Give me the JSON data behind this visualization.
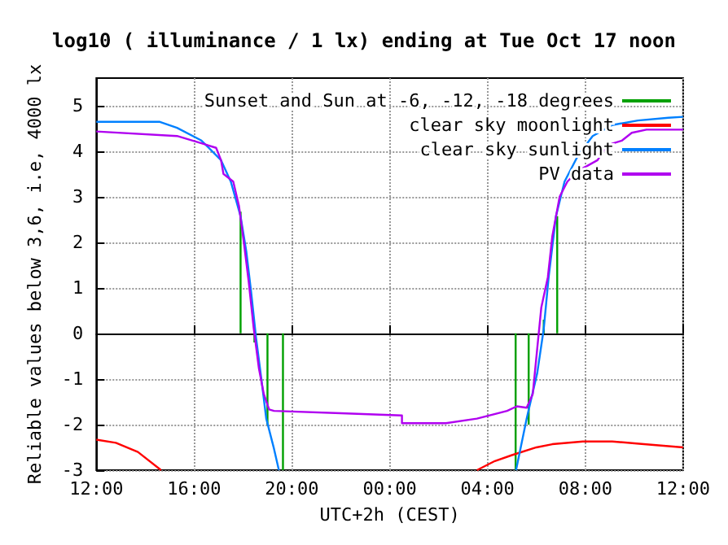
{
  "chart_data": {
    "type": "line",
    "title": "log10 ( illuminance / 1 lx) ending at Tue Oct 17 noon",
    "xlabel": "UTC+2h (CEST)",
    "ylabel": "Reliable values below 3,6, i.e, 4000 lx",
    "xlim": [
      "--10-16T12:00",
      "--10-17T12:00"
    ],
    "ylim": [
      -3,
      5.6
    ],
    "xticks": [
      {
        "value": "--10-16T12:00",
        "label": "12:00"
      },
      {
        "value": "--10-16T16:00",
        "label": "16:00"
      },
      {
        "value": "--10-16T20:00",
        "label": "20:00"
      },
      {
        "value": "--10-17T00:00",
        "label": "00:00"
      },
      {
        "value": "--10-17T04:00",
        "label": "04:00"
      },
      {
        "value": "--10-17T08:00",
        "label": "08:00"
      },
      {
        "value": "--10-17T12:00",
        "label": "12:00"
      }
    ],
    "yticks": [
      -3,
      -2,
      -1,
      0,
      1,
      2,
      3,
      4,
      5
    ],
    "grid": true,
    "legend": "top right",
    "marker": "none",
    "line_style": "solid",
    "series": [
      {
        "name": "Sunset and Sun at -6, -12, -18 degrees",
        "color": "#00a000",
        "x": [
          "--10-16T17:54",
          "--10-16T17:54",
          null,
          "--10-16T18:28",
          "--10-16T18:28",
          null,
          "--10-16T19:00",
          "--10-16T19:00",
          null,
          "--10-16T19:38",
          "--10-16T19:38",
          null,
          "--10-17T05:09",
          "--10-17T05:09",
          null,
          "--10-17T05:41",
          "--10-17T05:41",
          null,
          "--10-17T06:18",
          "--10-17T06:18",
          null,
          "--10-17T06:51",
          "--10-17T06:51"
        ],
        "values": [
          0,
          2.67,
          null,
          0,
          -0.2,
          null,
          0,
          -2,
          null,
          0,
          -3,
          null,
          0,
          -3,
          null,
          0,
          -2,
          null,
          0,
          0.3,
          null,
          0,
          2.57
        ]
      },
      {
        "name": "clear sky moonlight",
        "color": "#ff0000",
        "x": [
          "--10-16T12:00",
          "--10-16T12:48",
          "--10-16T13:42",
          "--10-16T14:39",
          null,
          "--10-17T03:34",
          "--10-17T04:18",
          "--10-17T05:00",
          "--10-17T06:00",
          "--10-17T06:39",
          "--10-17T07:54",
          "--10-17T09:06",
          "--10-17T10:12",
          "--10-17T11:18",
          "--10-17T12:00"
        ],
        "values": [
          -2.33,
          -2.4,
          -2.6,
          -3,
          null,
          -3,
          -2.8,
          -2.67,
          -2.5,
          -2.43,
          -2.37,
          -2.37,
          -2.42,
          -2.47,
          -2.5
        ]
      },
      {
        "name": "clear sky sunlight",
        "color": "#0080ff",
        "x": [
          "--10-16T12:00",
          "--10-16T14:36",
          "--10-16T15:18",
          "--10-16T16:18",
          "--10-16T17:06",
          "--10-16T17:30",
          "--10-16T17:54",
          "--10-16T18:08",
          "--10-16T18:20",
          "--10-16T18:32",
          "--10-16T18:45",
          "--10-16T18:57",
          "--10-16T19:16",
          "--10-16T19:28",
          null,
          "--10-17T05:10",
          "--10-17T05:36",
          "--10-17T06:02",
          "--10-17T06:18",
          "--10-17T06:30",
          "--10-17T06:48",
          "--10-17T07:09",
          "--10-17T07:42",
          "--10-17T08:18",
          "--10-17T09:06",
          "--10-17T10:09",
          "--10-17T11:24",
          "--10-17T12:00"
        ],
        "values": [
          4.64,
          4.64,
          4.51,
          4.23,
          3.8,
          3.33,
          2.57,
          1.8,
          0.9,
          -0.1,
          -1.0,
          -1.87,
          -2.53,
          -3,
          null,
          -3,
          -1.87,
          -0.87,
          0.1,
          1.23,
          2.57,
          3.33,
          3.9,
          4.33,
          4.57,
          4.67,
          4.73,
          4.75
        ]
      },
      {
        "name": "PV data",
        "color": "#b000f0",
        "x": [
          "--10-16T12:00",
          "--10-16T15:18",
          "--10-16T16:18",
          "--10-16T16:54",
          "--10-16T17:06",
          "--10-16T17:12",
          "--10-16T17:36",
          "--10-16T17:50",
          "--10-16T18:02",
          "--10-16T18:14",
          "--10-16T18:26",
          "--10-16T18:39",
          "--10-16T18:51",
          "--10-16T19:04",
          "--10-16T19:16",
          "--10-16T22:00",
          "--10-17T00:30",
          "--10-17T00:30",
          "--10-17T02:18",
          "--10-17T03:34",
          "--10-17T04:48",
          "--10-17T05:12",
          "--10-17T05:36",
          "--10-17T05:51",
          "--10-17T06:02",
          "--10-17T06:12",
          "--10-17T06:28",
          "--10-17T06:39",
          "--10-17T06:57",
          "--10-17T07:16",
          "--10-17T07:42",
          "--10-17T08:04",
          "--10-17T08:30",
          "--10-17T08:54",
          "--10-17T09:30",
          "--10-17T09:54",
          "--10-17T10:30",
          "--10-17T11:18",
          "--10-17T12:00"
        ],
        "values": [
          4.43,
          4.33,
          4.17,
          4.07,
          3.8,
          3.5,
          3.33,
          2.8,
          2.0,
          1.13,
          0.13,
          -0.77,
          -1.33,
          -1.67,
          -1.7,
          -1.75,
          -1.8,
          -1.97,
          -1.97,
          -1.87,
          -1.7,
          -1.6,
          -1.63,
          -1.33,
          -0.33,
          0.57,
          1.23,
          2.13,
          3.0,
          3.33,
          3.57,
          3.67,
          3.8,
          4.13,
          4.23,
          4.4,
          4.47,
          4.47,
          4.47
        ]
      }
    ]
  }
}
